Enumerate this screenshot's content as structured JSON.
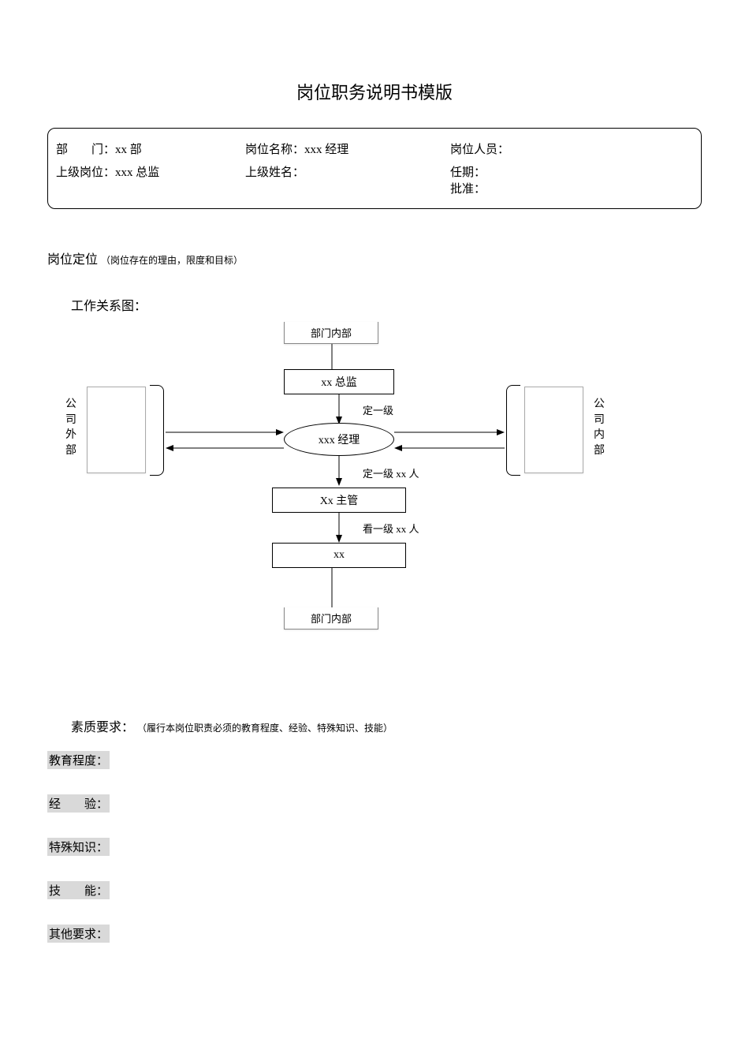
{
  "title": "岗位职务说明书模版",
  "info": {
    "row1": {
      "dept_label": "部　　门：",
      "dept_value": "xx 部",
      "posname_label": "岗位名称：",
      "posname_value": " xxx 经理",
      "person_label": "岗位人员：",
      "person_value": ""
    },
    "row2": {
      "super_pos_label": "上级岗位：",
      "super_pos_value": "xxx 总监",
      "super_name_label": "上级姓名：",
      "super_name_value": "",
      "term_label": "任期：",
      "approve_label": "批准："
    }
  },
  "position_heading": "岗位定位",
  "position_sub": "（岗位存在的理由，限度和目标）",
  "diagram": {
    "title": "工作关系图：",
    "dept_internal_top": "部门内部",
    "dept_internal_bottom": "部门内部",
    "top_box": "xx 总监",
    "center_ellipse": "xxx 经理",
    "mid_box": "Xx 主管",
    "bottom_box": "xx",
    "note1": "定一级",
    "note2": "定一级 xx 人",
    "note3": "看一级 xx 人",
    "ext_label": "公司外部",
    "int_label": "公司内部"
  },
  "requirements": {
    "heading": "素质要求：",
    "sub": "（履行本岗位职责必须的教育程度、经验、特殊知识、技能）",
    "items": [
      "教育程度：",
      "经　　验：",
      "特殊知识：",
      "技　　能：",
      "其他要求："
    ]
  },
  "colors": {
    "bg": "#ffffff",
    "text": "#000000",
    "highlight": "#d9d9d9",
    "border": "#000000"
  }
}
